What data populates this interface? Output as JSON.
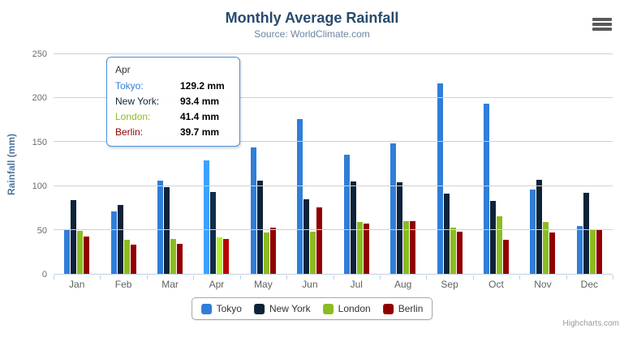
{
  "chart": {
    "title": "Monthly Average Rainfall",
    "subtitle": "Source: WorldClimate.com",
    "credit": "Highcharts.com",
    "menu_icon": "hamburger-export-menu"
  },
  "chart_data": {
    "type": "bar",
    "title": "Monthly Average Rainfall",
    "subtitle": "Source: WorldClimate.com",
    "categories": [
      "Jan",
      "Feb",
      "Mar",
      "Apr",
      "May",
      "Jun",
      "Jul",
      "Aug",
      "Sep",
      "Oct",
      "Nov",
      "Dec"
    ],
    "series": [
      {
        "name": "Tokyo",
        "color": "#2f7ed8",
        "values": [
          49.9,
          71.5,
          106.4,
          129.2,
          144.0,
          176.0,
          135.6,
          148.5,
          216.4,
          194.1,
          95.6,
          54.4
        ]
      },
      {
        "name": "New York",
        "color": "#0d233a",
        "values": [
          83.6,
          78.8,
          98.5,
          93.4,
          106.0,
          84.5,
          105.0,
          104.3,
          91.2,
          83.5,
          106.6,
          92.3
        ]
      },
      {
        "name": "London",
        "color": "#8bbc21",
        "values": [
          48.9,
          38.8,
          39.3,
          41.4,
          47.0,
          48.3,
          59.0,
          59.6,
          52.4,
          65.2,
          59.3,
          51.2
        ]
      },
      {
        "name": "Berlin",
        "color": "#910000",
        "values": [
          42.4,
          33.2,
          34.5,
          39.7,
          52.6,
          75.5,
          57.4,
          60.4,
          47.6,
          39.1,
          46.8,
          51.1
        ]
      }
    ],
    "xlabel": "",
    "ylabel": "Rainfall (mm)",
    "ylim": [
      0,
      250
    ],
    "ytick_interval": 50,
    "grid": true,
    "legend_position": "bottom",
    "hovered_category": "Apr"
  },
  "tooltip": {
    "header": "Apr",
    "rows": [
      {
        "label": "Tokyo:",
        "value": "129.2 mm",
        "color": "#2f7ed8"
      },
      {
        "label": "New York:",
        "value": "93.4 mm",
        "color": "#0d233a"
      },
      {
        "label": "London:",
        "value": "41.4 mm",
        "color": "#8bbc21"
      },
      {
        "label": "Berlin:",
        "value": "39.7 mm",
        "color": "#910000"
      }
    ]
  },
  "colors": {
    "title": "#274b6d",
    "subtitle": "#6d869f",
    "axis_line": "#c0d0e0",
    "gridline": "#d0d0d0",
    "axis_title": "#4d759e",
    "tooltip_border": "#4a90d8"
  }
}
